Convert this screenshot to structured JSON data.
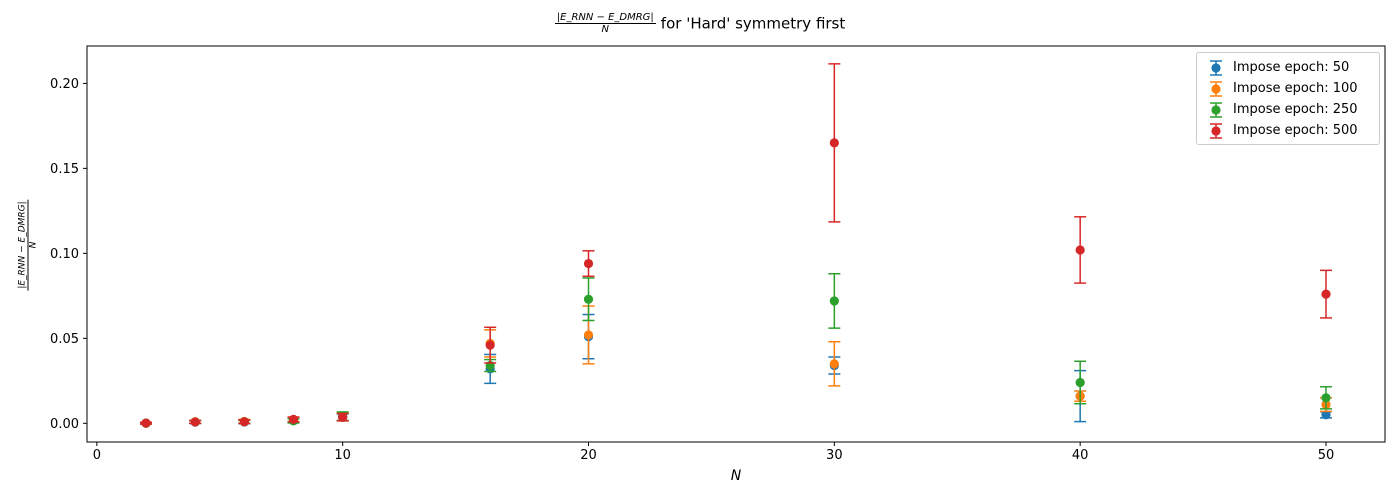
{
  "chart_data": {
    "type": "scatter",
    "title": {
      "numerator": "|E_RNN − E_DMRG|",
      "denominator": "N",
      "rest": "for 'Hard' symmetry first"
    },
    "xlabel": "N",
    "ylabel": {
      "numerator": "|E_RNN − E_DMRG|",
      "denominator": "N"
    },
    "xlim": [
      -0.4,
      52.4
    ],
    "ylim": [
      -0.011,
      0.222
    ],
    "xticks": [
      0,
      10,
      20,
      30,
      40,
      50
    ],
    "yticks": [
      0.0,
      0.05,
      0.1,
      0.15,
      0.2
    ],
    "ytick_labels": [
      "0.00",
      "0.05",
      "0.10",
      "0.15",
      "0.20"
    ],
    "grid": false,
    "legend_position": "top-right",
    "series": [
      {
        "name": "Impose epoch: 50",
        "color": "#1f77b4",
        "x": [
          2,
          4,
          6,
          8,
          10,
          16,
          20,
          30,
          40,
          50
        ],
        "y": [
          0.0001,
          0.0007,
          0.0008,
          0.0017,
          0.0035,
          0.032,
          0.051,
          0.034,
          0.016,
          0.005
        ],
        "yerr": [
          0.0005,
          0.0008,
          0.001,
          0.0012,
          0.002,
          0.0085,
          0.013,
          0.005,
          0.015,
          0.0018
        ]
      },
      {
        "name": "Impose epoch: 100",
        "color": "#ff7f0e",
        "x": [
          2,
          4,
          6,
          8,
          10,
          16,
          20,
          30,
          40,
          50
        ],
        "y": [
          0.0001,
          0.0009,
          0.0011,
          0.0018,
          0.0037,
          0.047,
          0.052,
          0.035,
          0.016,
          0.011
        ],
        "yerr": [
          0.0005,
          0.0009,
          0.0012,
          0.0013,
          0.0022,
          0.008,
          0.017,
          0.013,
          0.003,
          0.004
        ]
      },
      {
        "name": "Impose epoch: 250",
        "color": "#2ca02c",
        "x": [
          2,
          4,
          6,
          8,
          10,
          16,
          20,
          30,
          40,
          50
        ],
        "y": [
          0.0001,
          0.0008,
          0.0009,
          0.0014,
          0.0042,
          0.034,
          0.073,
          0.072,
          0.024,
          0.015
        ],
        "yerr": [
          0.0005,
          0.0008,
          0.001,
          0.0012,
          0.0025,
          0.0035,
          0.0125,
          0.016,
          0.0125,
          0.0065
        ]
      },
      {
        "name": "Impose epoch: 500",
        "color": "#d62728",
        "x": [
          2,
          4,
          6,
          8,
          10,
          16,
          20,
          30,
          40,
          50
        ],
        "y": [
          0.0001,
          0.0008,
          0.0009,
          0.0023,
          0.0036,
          0.046,
          0.094,
          0.165,
          0.102,
          0.076
        ],
        "yerr": [
          0.0005,
          0.0008,
          0.001,
          0.0014,
          0.0022,
          0.0105,
          0.0075,
          0.0465,
          0.0195,
          0.014
        ]
      }
    ]
  }
}
